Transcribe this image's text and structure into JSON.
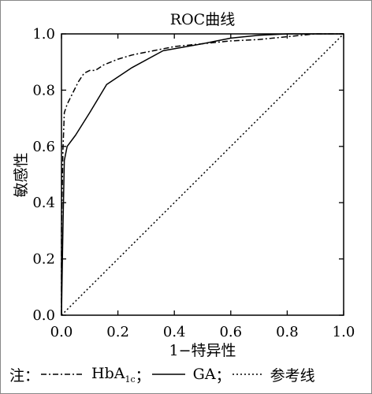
{
  "chart_data": {
    "type": "line",
    "title": "ROC曲线",
    "xlabel": "1−特异性",
    "ylabel": "敏感性",
    "xlim": [
      0.0,
      1.0
    ],
    "ylim": [
      0.0,
      1.0
    ],
    "xticks": [
      "0.0",
      "0.2",
      "0.4",
      "0.6",
      "0.8",
      "1.0"
    ],
    "yticks": [
      "0.0",
      "0.2",
      "0.4",
      "0.6",
      "0.8",
      "1.0"
    ],
    "grid": false,
    "series": [
      {
        "name": "HbA1c",
        "style": "dash-dot",
        "x": [
          0.0,
          0.0,
          0.005,
          0.01,
          0.02,
          0.04,
          0.06,
          0.08,
          0.1,
          0.12,
          0.15,
          0.2,
          0.25,
          0.3,
          0.4,
          0.5,
          0.6,
          0.7,
          0.8,
          0.9,
          1.0
        ],
        "y": [
          0.0,
          0.3,
          0.58,
          0.72,
          0.75,
          0.79,
          0.83,
          0.86,
          0.87,
          0.87,
          0.89,
          0.91,
          0.925,
          0.935,
          0.955,
          0.965,
          0.975,
          0.98,
          0.99,
          1.0,
          1.0
        ]
      },
      {
        "name": "GA",
        "style": "solid",
        "x": [
          0.0,
          0.005,
          0.01,
          0.02,
          0.05,
          0.1,
          0.16,
          0.25,
          0.36,
          0.5,
          0.6,
          0.7,
          0.8,
          0.9,
          1.0
        ],
        "y": [
          0.0,
          0.3,
          0.55,
          0.6,
          0.64,
          0.72,
          0.82,
          0.88,
          0.94,
          0.965,
          0.985,
          0.995,
          1.0,
          1.0,
          1.0
        ]
      },
      {
        "name": "参考线",
        "style": "dotted",
        "x": [
          0.0,
          1.0
        ],
        "y": [
          0.0,
          1.0
        ]
      }
    ]
  },
  "legend": {
    "prefix": "注：",
    "hba1c_main": "HbA",
    "hba1c_sub": "1c",
    "sep1": "；",
    "ga": "GA",
    "sep2": "；",
    "ref": "参考线"
  }
}
